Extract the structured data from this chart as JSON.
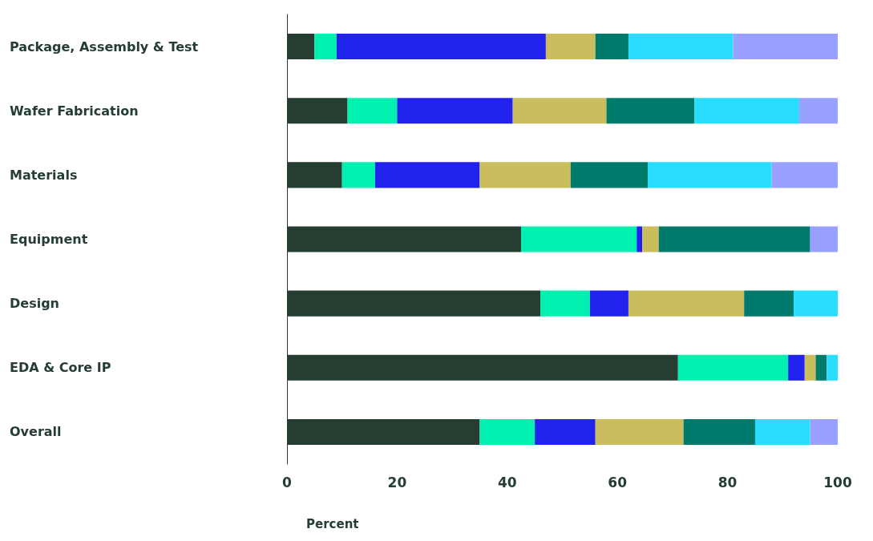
{
  "chart_data": {
    "type": "bar",
    "orientation": "horizontal",
    "stacked": true,
    "xlabel": "Percent",
    "categories": [
      "Package, Assembly & Test",
      "Wafer Fabrication",
      "Materials",
      "Equipment",
      "Design",
      "EDA & Core IP",
      "Overall"
    ],
    "series": [
      {
        "color": "#263d32",
        "values": [
          5,
          11,
          10,
          42.5,
          46,
          71,
          35
        ]
      },
      {
        "color": "#00f0b0",
        "values": [
          4,
          9,
          6,
          21,
          9,
          20,
          10
        ]
      },
      {
        "color": "#2222ee",
        "values": [
          38,
          21,
          19,
          1,
          7,
          3,
          11
        ]
      },
      {
        "color": "#c9bd5e",
        "values": [
          9,
          17,
          16.5,
          3,
          21,
          2,
          16
        ]
      },
      {
        "color": "#007a6a",
        "values": [
          6,
          16,
          14,
          27.5,
          9,
          2,
          13
        ]
      },
      {
        "color": "#29ddff",
        "values": [
          19,
          19,
          22.5,
          0,
          8,
          2,
          10
        ]
      },
      {
        "color": "#99a0ff",
        "values": [
          19,
          7,
          12,
          5,
          0,
          0,
          5
        ]
      }
    ],
    "xlim": [
      0,
      100
    ],
    "xticks": [
      0,
      20,
      40,
      60,
      80,
      100
    ],
    "grid": false
  }
}
